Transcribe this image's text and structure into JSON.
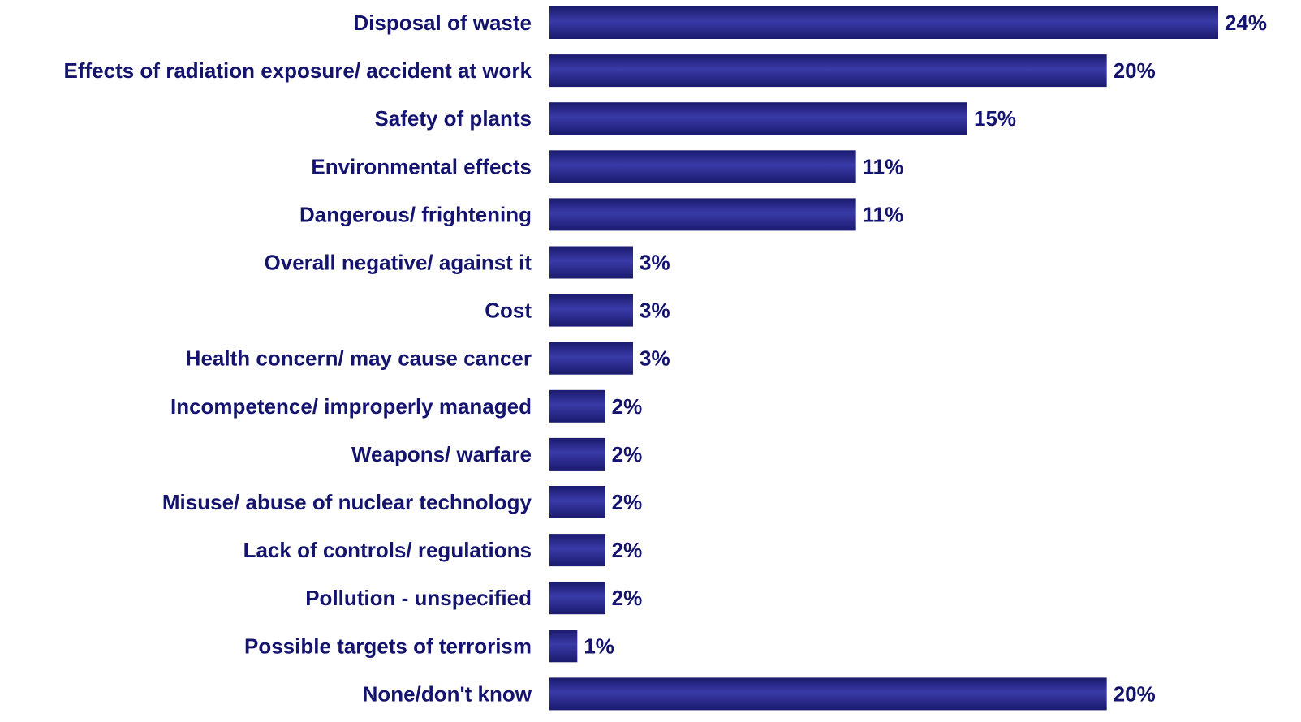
{
  "chart_data": {
    "type": "bar",
    "orientation": "horizontal",
    "categories": [
      "Disposal of waste",
      "Effects of radiation exposure/ accident at work",
      "Safety of plants",
      "Environmental effects",
      "Dangerous/ frightening",
      "Overall negative/ against it",
      "Cost",
      "Health concern/ may cause cancer",
      "Incompetence/ improperly managed",
      "Weapons/ warfare",
      "Misuse/ abuse of nuclear technology",
      "Lack of controls/ regulations",
      "Pollution - unspecified",
      "Possible targets of terrorism",
      "None/don't know"
    ],
    "values": [
      24,
      20,
      15,
      11,
      11,
      3,
      3,
      3,
      2,
      2,
      2,
      2,
      2,
      1,
      20
    ],
    "value_labels": [
      "24%",
      "20%",
      "15%",
      "11%",
      "11%",
      "3%",
      "3%",
      "3%",
      "2%",
      "2%",
      "2%",
      "2%",
      "2%",
      "1%",
      "20%"
    ],
    "unit": "%",
    "title": "",
    "xlabel": "",
    "ylabel": "",
    "xlim": [
      0,
      24
    ],
    "grid": false,
    "legend": "none",
    "bar_color": "#1a1a6e",
    "bar_color_highlight": "#3a3aa8",
    "text_color": "#14146e"
  }
}
